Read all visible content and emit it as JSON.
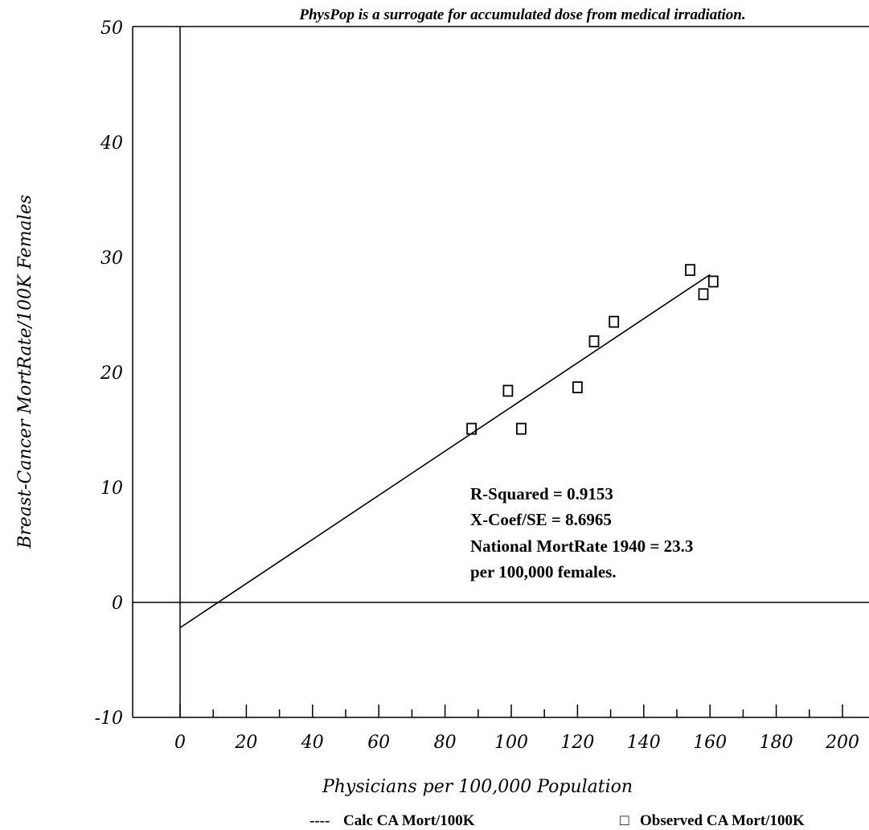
{
  "chart_data": {
    "type": "scatter",
    "title": "PhysPop is a surrogate for accumulated dose from medical irradiation.",
    "xlabel": "Physicians per 100,000 Population",
    "ylabel": "Breast-Cancer MortRate/100K Females",
    "xlim": [
      -27,
      210
    ],
    "ylim": [
      -10,
      50
    ],
    "x_ticks": [
      "0",
      "20",
      "40",
      "60",
      "80",
      "100",
      "120",
      "140",
      "160",
      "180",
      "200"
    ],
    "y_ticks": [
      "-10",
      "0",
      "10",
      "20",
      "30",
      "40",
      "50"
    ],
    "grid": false,
    "legend_position": "bottom",
    "series": [
      {
        "name": "Calc CA Mort/100K",
        "kind": "line",
        "style": "dashed",
        "x": [
          0,
          160
        ],
        "y": [
          -2.2,
          28.5
        ]
      },
      {
        "name": "Observed CA Mort/100K",
        "kind": "scatter",
        "marker": "square",
        "x": [
          88,
          99,
          103,
          120,
          125,
          131,
          154,
          158,
          161
        ],
        "y": [
          15.1,
          18.4,
          15.1,
          18.7,
          22.7,
          24.4,
          28.9,
          26.8,
          27.9
        ]
      }
    ],
    "annotations": [
      "R-Squared = 0.9153",
      "X-Coef/SE = 8.6965",
      "National MortRate 1940 = 23.3",
      "per 100,000 females."
    ],
    "legend": [
      {
        "symbol": "----",
        "label": "Calc CA Mort/100K"
      },
      {
        "symbol": "□",
        "label": "Observed CA Mort/100K"
      }
    ]
  }
}
